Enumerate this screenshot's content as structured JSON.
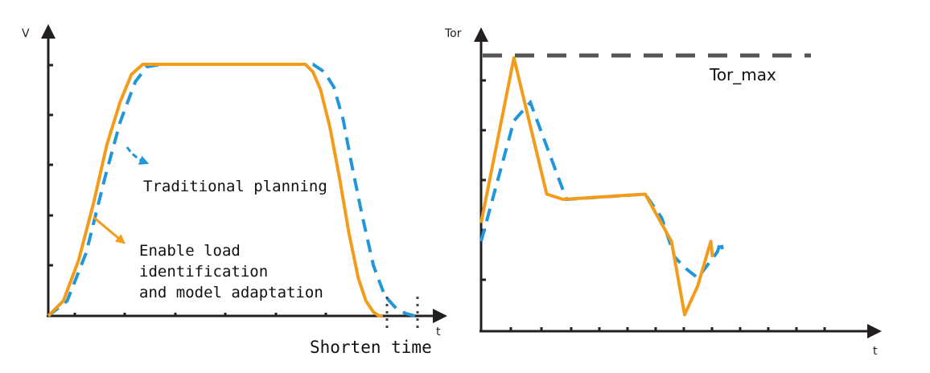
{
  "colors": {
    "adaptive": "#f39c1a",
    "traditional": "#2196d8",
    "axis": "#231f20",
    "reference": "#555555"
  },
  "chart_data": [
    {
      "type": "line",
      "chart": "velocity",
      "ylabel": "V",
      "xlabel": "t",
      "xlim": [
        0,
        1
      ],
      "ylim": [
        0,
        1
      ],
      "grid": false,
      "series": [
        {
          "style": "solid",
          "color": "#f39c1a",
          "x": [
            0.0,
            0.04,
            0.08,
            0.12,
            0.155,
            0.19,
            0.22,
            0.25,
            0.3,
            0.4,
            0.5,
            0.6,
            0.68,
            0.7,
            0.72,
            0.745,
            0.77,
            0.795,
            0.82,
            0.84,
            0.86,
            0.875,
            0.885
          ],
          "y": [
            0.0,
            0.06,
            0.22,
            0.45,
            0.68,
            0.85,
            0.96,
            1.0,
            1.0,
            1.0,
            1.0,
            1.0,
            1.0,
            0.97,
            0.9,
            0.75,
            0.55,
            0.33,
            0.15,
            0.06,
            0.015,
            0.0,
            0.0
          ]
        },
        {
          "style": "dashed",
          "color": "#2196d8",
          "x": [
            0.0,
            0.05,
            0.1,
            0.15,
            0.19,
            0.23,
            0.26,
            0.3,
            0.4,
            0.5,
            0.6,
            0.66,
            0.7,
            0.73,
            0.755,
            0.78,
            0.8,
            0.83,
            0.86,
            0.89,
            0.92,
            0.945,
            0.97
          ],
          "y": [
            0.0,
            0.06,
            0.25,
            0.55,
            0.77,
            0.93,
            0.99,
            1.0,
            1.0,
            1.0,
            1.0,
            1.0,
            1.0,
            0.97,
            0.91,
            0.78,
            0.62,
            0.4,
            0.2,
            0.08,
            0.03,
            0.01,
            0.0
          ]
        }
      ],
      "annotations": [
        {
          "lines": [
            "Traditional planning"
          ],
          "arrow_color": "#2196d8"
        },
        {
          "lines": [
            "Enable load",
            "identification",
            "and model adaptation"
          ],
          "arrow_color": "#f39c1a"
        },
        {
          "lines": [
            "Shorten time"
          ]
        }
      ]
    },
    {
      "type": "line",
      "chart": "torque",
      "ylabel": "Tor",
      "xlabel": "t",
      "xlim": [
        0,
        1
      ],
      "ylim": [
        0,
        1
      ],
      "grid": false,
      "reference_lines": [
        {
          "label": "Tor_max",
          "y": 1.0,
          "style": "dashed",
          "color": "#555555"
        }
      ],
      "series": [
        {
          "style": "solid",
          "color": "#f39c1a",
          "x": [
            0.0,
            0.1,
            0.2,
            0.25,
            0.5,
            0.58,
            0.62,
            0.66,
            0.7,
            0.705
          ],
          "y": [
            0.37,
            1.0,
            0.48,
            0.46,
            0.48,
            0.3,
            0.02,
            0.13,
            0.3,
            0.24
          ]
        },
        {
          "style": "dashed",
          "color": "#2196d8",
          "x": [
            0.0,
            0.1,
            0.15,
            0.26,
            0.5,
            0.55,
            0.59,
            0.62,
            0.66,
            0.72,
            0.73,
            0.735
          ],
          "y": [
            0.3,
            0.76,
            0.83,
            0.46,
            0.48,
            0.39,
            0.24,
            0.2,
            0.16,
            0.26,
            0.3,
            0.27
          ]
        }
      ]
    }
  ]
}
